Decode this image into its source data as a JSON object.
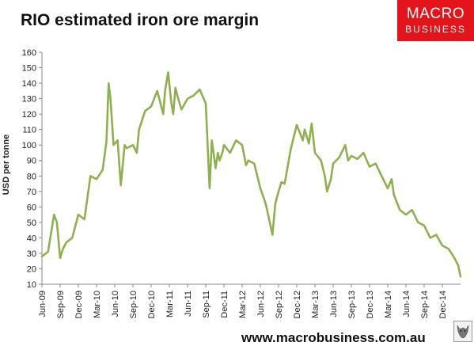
{
  "header": {
    "title": "RIO estimated iron ore margin"
  },
  "brand": {
    "logo_line1": "MACRO",
    "logo_line2": "BUSINESS",
    "logo_color": "#e3151a",
    "footer_url": "www.macrobusiness.com.au"
  },
  "chart_data": {
    "type": "line",
    "title": "RIO estimated iron ore margin",
    "ylabel": "USD per tonne",
    "xlabel": "",
    "ylim": [
      10,
      160
    ],
    "yticks": [
      10,
      20,
      30,
      40,
      50,
      60,
      70,
      80,
      90,
      100,
      110,
      120,
      130,
      140,
      150,
      160
    ],
    "xlim": [
      "2009-06",
      "2015-03"
    ],
    "x_tick_labels": [
      "Jun-09",
      "Sep-09",
      "Dec-09",
      "Mar-10",
      "Jun-10",
      "Sep-10",
      "Dec-10",
      "Mar-11",
      "Jun-11",
      "Sep-11",
      "Dec-11",
      "Mar-12",
      "Jun-12",
      "Sep-12",
      "Dec-12",
      "Mar-13",
      "Jun-13",
      "Sep-13",
      "Dec-13",
      "Mar-14",
      "Jun-14",
      "Sep-14",
      "Dec-14"
    ],
    "grid": false,
    "line_color": "#8fb04e",
    "series": [
      {
        "x": [
          "2009-06",
          "2009-07",
          "2009-08",
          "2009-08-15",
          "2009-09",
          "2009-09-15",
          "2009-10",
          "2009-11",
          "2009-12",
          "2010-01",
          "2010-02",
          "2010-03",
          "2010-04",
          "2010-04-20",
          "2010-05",
          "2010-05-10",
          "2010-05-25",
          "2010-06-15",
          "2010-07",
          "2010-07-20",
          "2010-08",
          "2010-09",
          "2010-09-20",
          "2010-10",
          "2010-11",
          "2010-12",
          "2011-01",
          "2011-02",
          "2011-02-10",
          "2011-02-25",
          "2011-03-10",
          "2011-03-20",
          "2011-04",
          "2011-04-15",
          "2011-05",
          "2011-06",
          "2011-07",
          "2011-08",
          "2011-09",
          "2011-09-20",
          "2011-10",
          "2011-10-20",
          "2011-11",
          "2011-11-10",
          "2011-11-25",
          "2011-12",
          "2012-01",
          "2012-02",
          "2012-03",
          "2012-03-20",
          "2012-04",
          "2012-05",
          "2012-06",
          "2012-06-20",
          "2012-07",
          "2012-08",
          "2012-08-15",
          "2012-09",
          "2012-09-15",
          "2012-10",
          "2012-11",
          "2012-12",
          "2013-01",
          "2013-01-10",
          "2013-02",
          "2013-02-15",
          "2013-03",
          "2013-04",
          "2013-04-20",
          "2013-05",
          "2013-05-20",
          "2013-06",
          "2013-07",
          "2013-08",
          "2013-08-15",
          "2013-09",
          "2013-10",
          "2013-11",
          "2013-12",
          "2014-01",
          "2014-02",
          "2014-03",
          "2014-03-20",
          "2014-04",
          "2014-05",
          "2014-06",
          "2014-07",
          "2014-08",
          "2014-09",
          "2014-10",
          "2014-11",
          "2014-12",
          "2015-01",
          "2015-02",
          "2015-02-20",
          "2015-03"
        ],
        "values": [
          28,
          31,
          55,
          50,
          27,
          33,
          37,
          40,
          55,
          52,
          80,
          78,
          84,
          102,
          140,
          130,
          100,
          103,
          74,
          100,
          98,
          100,
          95,
          110,
          122,
          125,
          135,
          120,
          135,
          147,
          128,
          120,
          137,
          130,
          123,
          130,
          132,
          136,
          127,
          72,
          103,
          85,
          95,
          90,
          96,
          100,
          95,
          103,
          100,
          87,
          90,
          88,
          72,
          65,
          60,
          42,
          62,
          70,
          76,
          75,
          97,
          113,
          103,
          110,
          101,
          114,
          95,
          90,
          80,
          70,
          78,
          88,
          92,
          100,
          90,
          93,
          91,
          95,
          86,
          88,
          80,
          72,
          78,
          68,
          58,
          55,
          58,
          50,
          48,
          40,
          42,
          35,
          33,
          27,
          22,
          15
        ]
      }
    ]
  }
}
